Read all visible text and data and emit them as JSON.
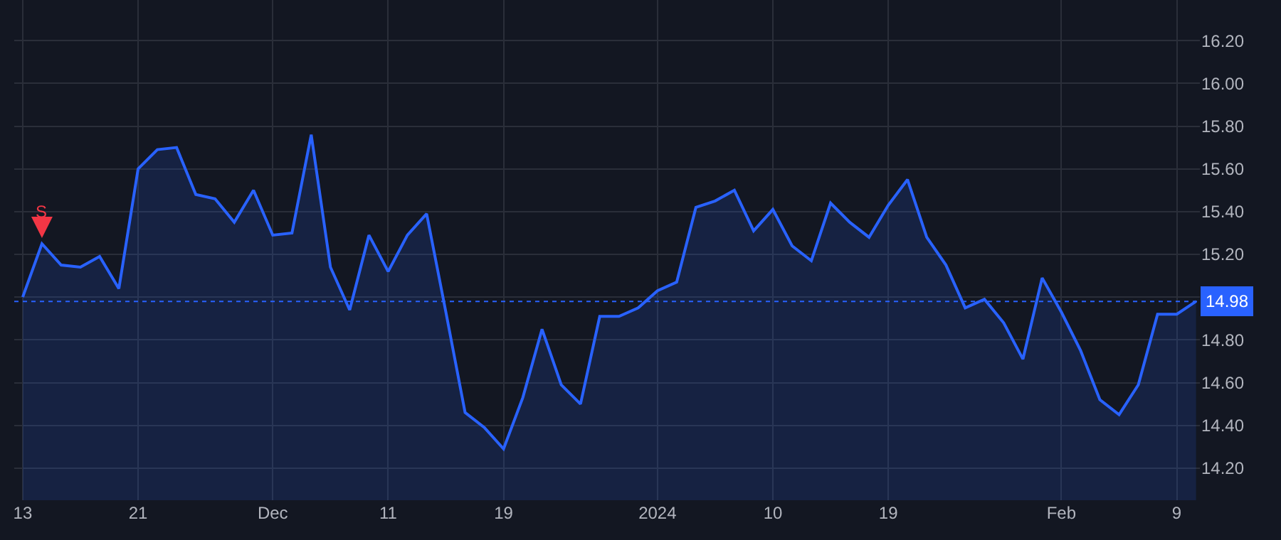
{
  "chart_data": {
    "type": "area",
    "categories": [
      "13",
      null,
      null,
      null,
      null,
      null,
      "21",
      null,
      null,
      null,
      null,
      null,
      null,
      "Dec",
      null,
      null,
      null,
      null,
      null,
      "11",
      null,
      null,
      null,
      null,
      null,
      "19",
      null,
      null,
      null,
      null,
      null,
      null,
      null,
      "2024",
      null,
      null,
      null,
      null,
      null,
      "10",
      null,
      null,
      null,
      null,
      null,
      "19",
      null,
      null,
      null,
      null,
      null,
      null,
      null,
      null,
      "Feb",
      null,
      null,
      null,
      null,
      null,
      "9",
      null
    ],
    "series": [
      {
        "color": "#2962ff",
        "values": [
          15.0,
          15.25,
          15.15,
          15.14,
          15.19,
          15.04,
          15.6,
          15.69,
          15.7,
          15.48,
          15.46,
          15.35,
          15.5,
          15.29,
          15.3,
          15.76,
          15.14,
          14.94,
          15.29,
          15.12,
          15.29,
          15.39,
          14.93,
          14.46,
          14.39,
          14.29,
          14.53,
          14.85,
          14.59,
          14.5,
          14.91,
          14.91,
          14.95,
          15.03,
          15.07,
          15.42,
          15.45,
          15.5,
          15.31,
          15.41,
          15.24,
          15.17,
          15.44,
          15.35,
          15.28,
          15.43,
          15.55,
          15.28,
          15.15,
          14.95,
          14.99,
          14.88,
          14.71,
          15.09,
          14.93,
          14.75,
          14.52,
          14.45,
          14.59,
          14.92,
          14.92,
          14.98
        ]
      }
    ],
    "ylim": [
      14.05,
      16.39
    ],
    "yticks": [
      {
        "value": 14.2,
        "label": "14.20"
      },
      {
        "value": 14.4,
        "label": "14.40"
      },
      {
        "value": 14.6,
        "label": "14.60"
      },
      {
        "value": 14.8,
        "label": "14.80"
      },
      {
        "value": 15.0,
        "label": null
      },
      {
        "value": 15.2,
        "label": "15.20"
      },
      {
        "value": 15.4,
        "label": "15.40"
      },
      {
        "value": 15.6,
        "label": "15.60"
      },
      {
        "value": 15.8,
        "label": "15.80"
      },
      {
        "value": 16.0,
        "label": "16.00"
      },
      {
        "value": 16.2,
        "label": "16.20"
      }
    ],
    "ref_lines": [
      {
        "axis": "y",
        "value": 14.98,
        "label": "14.98",
        "color": "#2962ff",
        "line_style": "dotted"
      }
    ],
    "annotations": [
      {
        "text": "S",
        "y": 15.25
      }
    ],
    "grid": true,
    "marker": "none",
    "line_style": "solid"
  }
}
